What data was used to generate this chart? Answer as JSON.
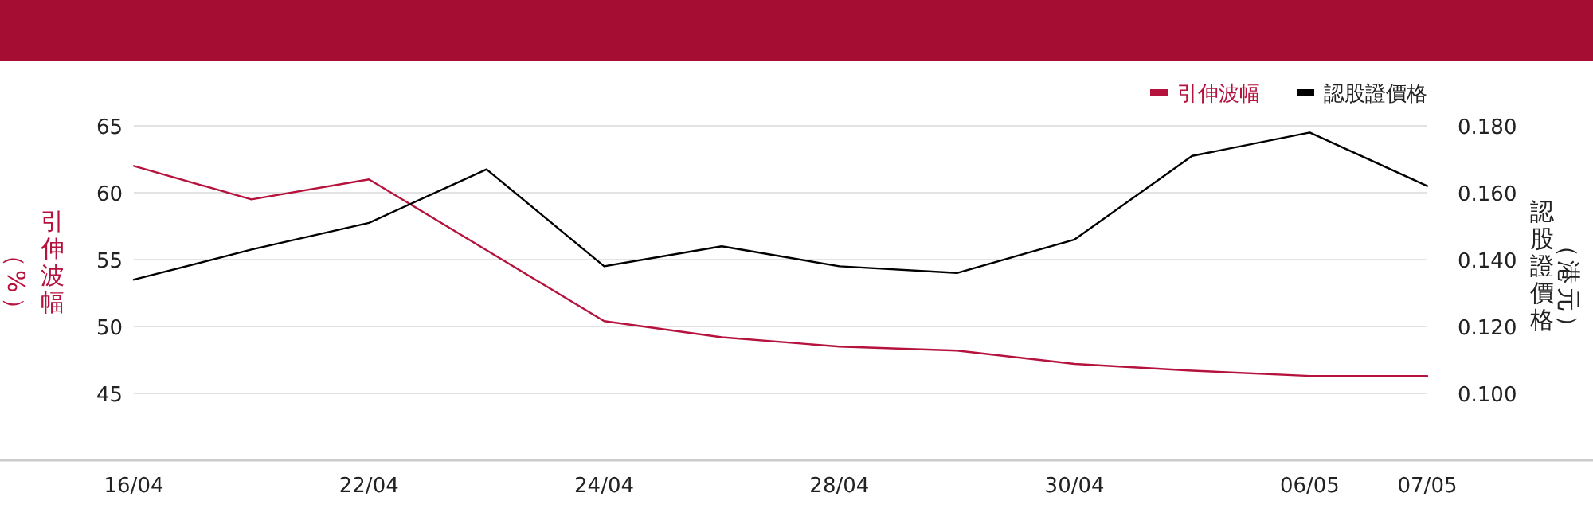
{
  "chart_data": {
    "type": "line",
    "categories": [
      "16/04",
      null,
      "22/04",
      null,
      "24/04",
      null,
      "28/04",
      null,
      "30/04",
      null,
      "06/05",
      "07/05"
    ],
    "series": [
      {
        "name": "引伸波幅",
        "color": "#b5123d",
        "values": [
          62.0,
          59.5,
          61.0,
          55.7,
          50.4,
          49.2,
          48.5,
          48.2,
          47.2,
          46.7,
          46.3,
          46.3
        ]
      },
      {
        "name": "認股證價格",
        "color": "#000000",
        "axis": "y2",
        "values": [
          0.134,
          0.143,
          0.151,
          0.167,
          0.138,
          0.144,
          0.138,
          0.136,
          0.146,
          0.171,
          0.178,
          0.162
        ]
      }
    ],
    "ylabel": "引伸波幅（%）",
    "y2label": "認股證價格（港元）",
    "ylim": [
      40,
      65
    ],
    "yticks": [
      45,
      50,
      55,
      60,
      65
    ],
    "y2lim": [
      0.08,
      0.18
    ],
    "y2ticks": [
      {
        "value": 0.1,
        "label": "0.100"
      },
      {
        "value": 0.12,
        "label": "0.120"
      },
      {
        "value": 0.14,
        "label": "0.140"
      },
      {
        "value": 0.16,
        "label": "0.160"
      },
      {
        "value": 0.18,
        "label": "0.180"
      }
    ],
    "grid": "y",
    "legend": "top right",
    "marker": "none",
    "line_style": "solid"
  }
}
